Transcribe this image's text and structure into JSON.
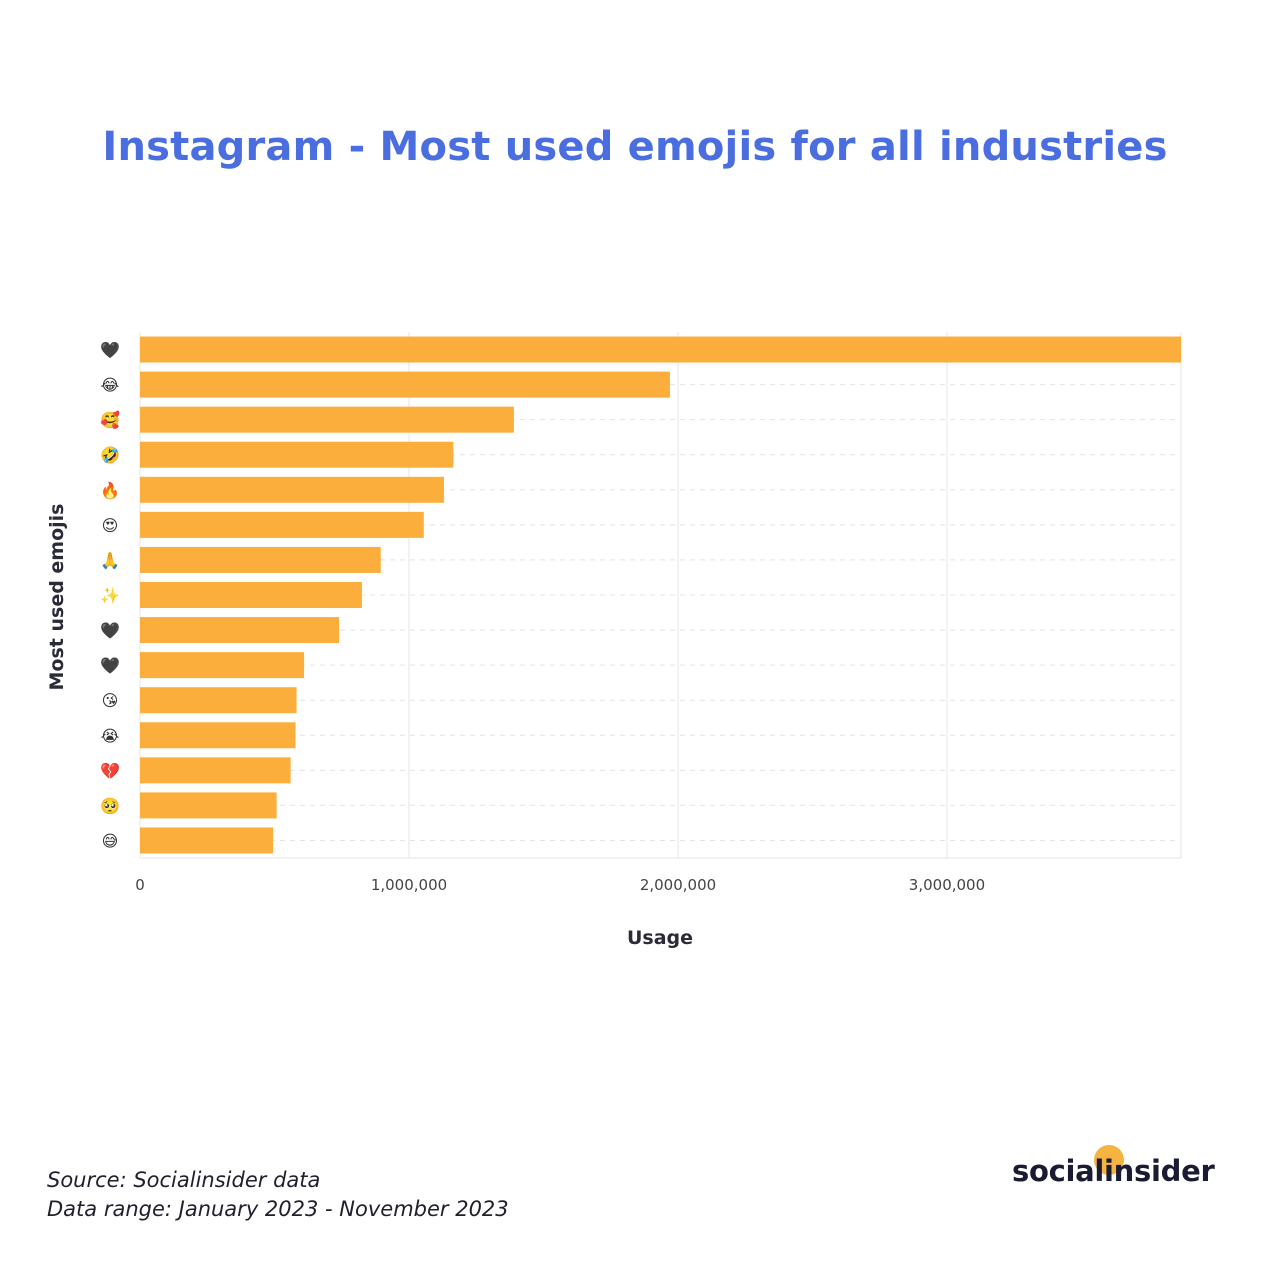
{
  "title": "Instagram - Most used emojis for all industries",
  "chart_data": {
    "type": "bar",
    "orientation": "horizontal",
    "categories": [
      "🖤",
      "😂",
      "🥰",
      "🤣",
      "🔥",
      "😍",
      "🙏",
      "✨",
      "🖤",
      "🖤",
      "😘",
      "😭",
      "💔",
      "🥺",
      "😅"
    ],
    "values": [
      3870000,
      1970000,
      1390000,
      1165000,
      1130000,
      1055000,
      895000,
      825000,
      740000,
      610000,
      582000,
      578000,
      560000,
      508000,
      495000
    ],
    "xlabel": "Usage",
    "ylabel": "Most used emojis",
    "xlim": [
      0,
      3870000
    ],
    "xticks": [
      0,
      1000000,
      2000000,
      3000000
    ],
    "xtick_labels": [
      "0",
      "1,000,000",
      "2,000,000",
      "3,000,000"
    ],
    "grid": true,
    "bar_color": "#fbae3c"
  },
  "footer": {
    "source": "Source: Socialinsider data",
    "range": "Data range: January 2023 - November 2023"
  },
  "logo": {
    "text": "socialinsider",
    "dot_color": "#f5b43f"
  }
}
